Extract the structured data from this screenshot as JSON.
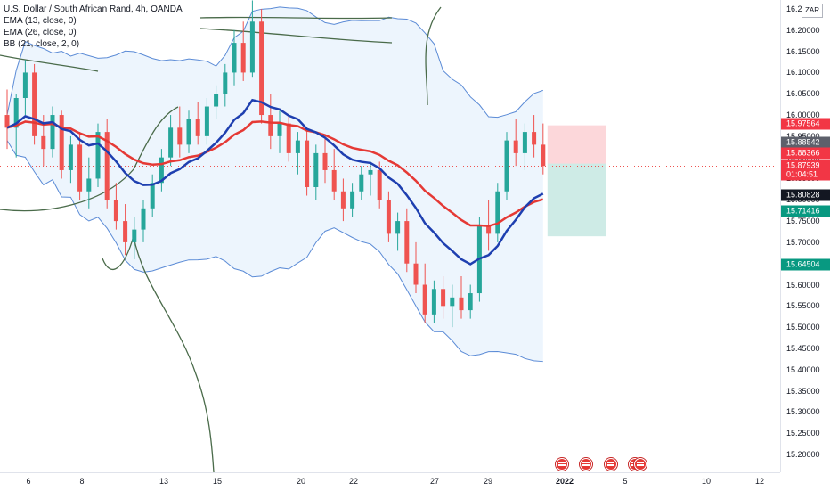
{
  "legend": {
    "title": "U.S. Dollar / South African Rand, 4h, OANDA",
    "ema13": "EMA (13, close, 0)",
    "ema26": "EMA (26, close, 0)",
    "bb": "BB (21, close, 2, 0)"
  },
  "currency": "ZAR",
  "price_ticks": [
    "16.25000",
    "16.20000",
    "16.15000",
    "16.10000",
    "16.05000",
    "16.00000",
    "15.95000",
    "15.90000",
    "15.85000",
    "15.80000",
    "15.75000",
    "15.70000",
    "15.65000",
    "15.60000",
    "15.55000",
    "15.50000",
    "15.45000",
    "15.40000",
    "15.35000",
    "15.30000",
    "15.25000",
    "15.20000"
  ],
  "price_tags": [
    {
      "value": "15.97564",
      "color": "#f23645"
    },
    {
      "value": "15.88542",
      "color": "#5d606b"
    },
    {
      "value": "15.88366",
      "color": "#f23645"
    },
    {
      "value": "15.87939",
      "color": "#f23645"
    },
    {
      "value": "01:04:51",
      "color": "#f23645"
    },
    {
      "value": "15.80828",
      "color": "#131722"
    },
    {
      "value": "15.71416",
      "color": "#089981"
    },
    {
      "value": "15.64504",
      "color": "#089981"
    }
  ],
  "time_labels": [
    "6",
    "8",
    "13",
    "15",
    "20",
    "22",
    "27",
    "29",
    "2022",
    "5",
    "10",
    "12"
  ],
  "colors": {
    "bb_line": "#5b8bd6",
    "bb_fill": "#e8f2fc",
    "ema13": "#1e3fb0",
    "ema26": "#e53935",
    "up": "#26a69a",
    "down": "#ef5350",
    "drawing": "#4a6b4a"
  },
  "chart_data": {
    "type": "candlestick",
    "symbol": "USDZAR",
    "interval": "4h",
    "y_range": [
      15.17,
      16.27
    ],
    "last_price": 15.87939,
    "candles": [
      [
        16.0,
        16.06,
        15.92,
        15.97
      ],
      [
        15.97,
        16.05,
        15.9,
        16.04
      ],
      [
        16.04,
        16.13,
        16.0,
        16.1
      ],
      [
        16.1,
        16.12,
        15.93,
        15.95
      ],
      [
        15.95,
        16.0,
        15.88,
        15.92
      ],
      [
        15.92,
        16.02,
        15.9,
        16.0
      ],
      [
        16.0,
        16.01,
        15.85,
        15.87
      ],
      [
        15.87,
        15.95,
        15.84,
        15.93
      ],
      [
        15.93,
        15.96,
        15.8,
        15.82
      ],
      [
        15.82,
        15.9,
        15.78,
        15.85
      ],
      [
        15.85,
        15.98,
        15.83,
        15.96
      ],
      [
        15.96,
        15.99,
        15.78,
        15.8
      ],
      [
        15.8,
        15.84,
        15.73,
        15.75
      ],
      [
        15.75,
        15.79,
        15.67,
        15.7
      ],
      [
        15.7,
        15.76,
        15.66,
        15.73
      ],
      [
        15.73,
        15.8,
        15.7,
        15.78
      ],
      [
        15.78,
        15.86,
        15.76,
        15.84
      ],
      [
        15.84,
        15.92,
        15.82,
        15.9
      ],
      [
        15.9,
        16.0,
        15.88,
        15.97
      ],
      [
        15.97,
        16.02,
        15.9,
        15.93
      ],
      [
        15.93,
        16.01,
        15.91,
        15.99
      ],
      [
        15.99,
        16.03,
        15.93,
        15.95
      ],
      [
        15.95,
        16.04,
        15.93,
        16.02
      ],
      [
        16.02,
        16.07,
        15.99,
        16.05
      ],
      [
        16.05,
        16.12,
        16.02,
        16.1
      ],
      [
        16.1,
        16.2,
        16.07,
        16.17
      ],
      [
        16.17,
        16.22,
        16.08,
        16.1
      ],
      [
        16.1,
        16.27,
        16.09,
        16.22
      ],
      [
        16.22,
        16.25,
        15.98,
        16.0
      ],
      [
        16.0,
        16.05,
        15.92,
        15.95
      ],
      [
        15.95,
        16.01,
        15.91,
        15.98
      ],
      [
        15.98,
        16.0,
        15.89,
        15.91
      ],
      [
        15.91,
        15.96,
        15.86,
        15.94
      ],
      [
        15.94,
        15.97,
        15.81,
        15.83
      ],
      [
        15.83,
        15.93,
        15.8,
        15.91
      ],
      [
        15.91,
        15.95,
        15.84,
        15.87
      ],
      [
        15.87,
        15.92,
        15.8,
        15.82
      ],
      [
        15.82,
        15.85,
        15.75,
        15.78
      ],
      [
        15.78,
        15.84,
        15.76,
        15.82
      ],
      [
        15.82,
        15.88,
        15.8,
        15.86
      ],
      [
        15.86,
        15.89,
        15.81,
        15.87
      ],
      [
        15.87,
        15.89,
        15.78,
        15.8
      ],
      [
        15.8,
        15.82,
        15.7,
        15.72
      ],
      [
        15.72,
        15.77,
        15.68,
        15.75
      ],
      [
        15.75,
        15.78,
        15.63,
        15.65
      ],
      [
        15.65,
        15.7,
        15.58,
        15.6
      ],
      [
        15.6,
        15.65,
        15.51,
        15.53
      ],
      [
        15.53,
        15.61,
        15.51,
        15.59
      ],
      [
        15.59,
        15.62,
        15.52,
        15.55
      ],
      [
        15.55,
        15.6,
        15.5,
        15.57
      ],
      [
        15.57,
        15.62,
        15.52,
        15.54
      ],
      [
        15.54,
        15.6,
        15.52,
        15.58
      ],
      [
        15.58,
        15.76,
        15.56,
        15.74
      ],
      [
        15.74,
        15.8,
        15.68,
        15.72
      ],
      [
        15.72,
        15.84,
        15.7,
        15.82
      ],
      [
        15.82,
        15.96,
        15.8,
        15.94
      ],
      [
        15.94,
        15.99,
        15.88,
        15.91
      ],
      [
        15.91,
        15.98,
        15.87,
        15.96
      ],
      [
        15.96,
        16.0,
        15.9,
        15.93
      ],
      [
        15.93,
        15.98,
        15.86,
        15.88
      ]
    ],
    "position": {
      "entry": 15.88542,
      "stop": 15.97564,
      "target": 15.71416
    }
  }
}
